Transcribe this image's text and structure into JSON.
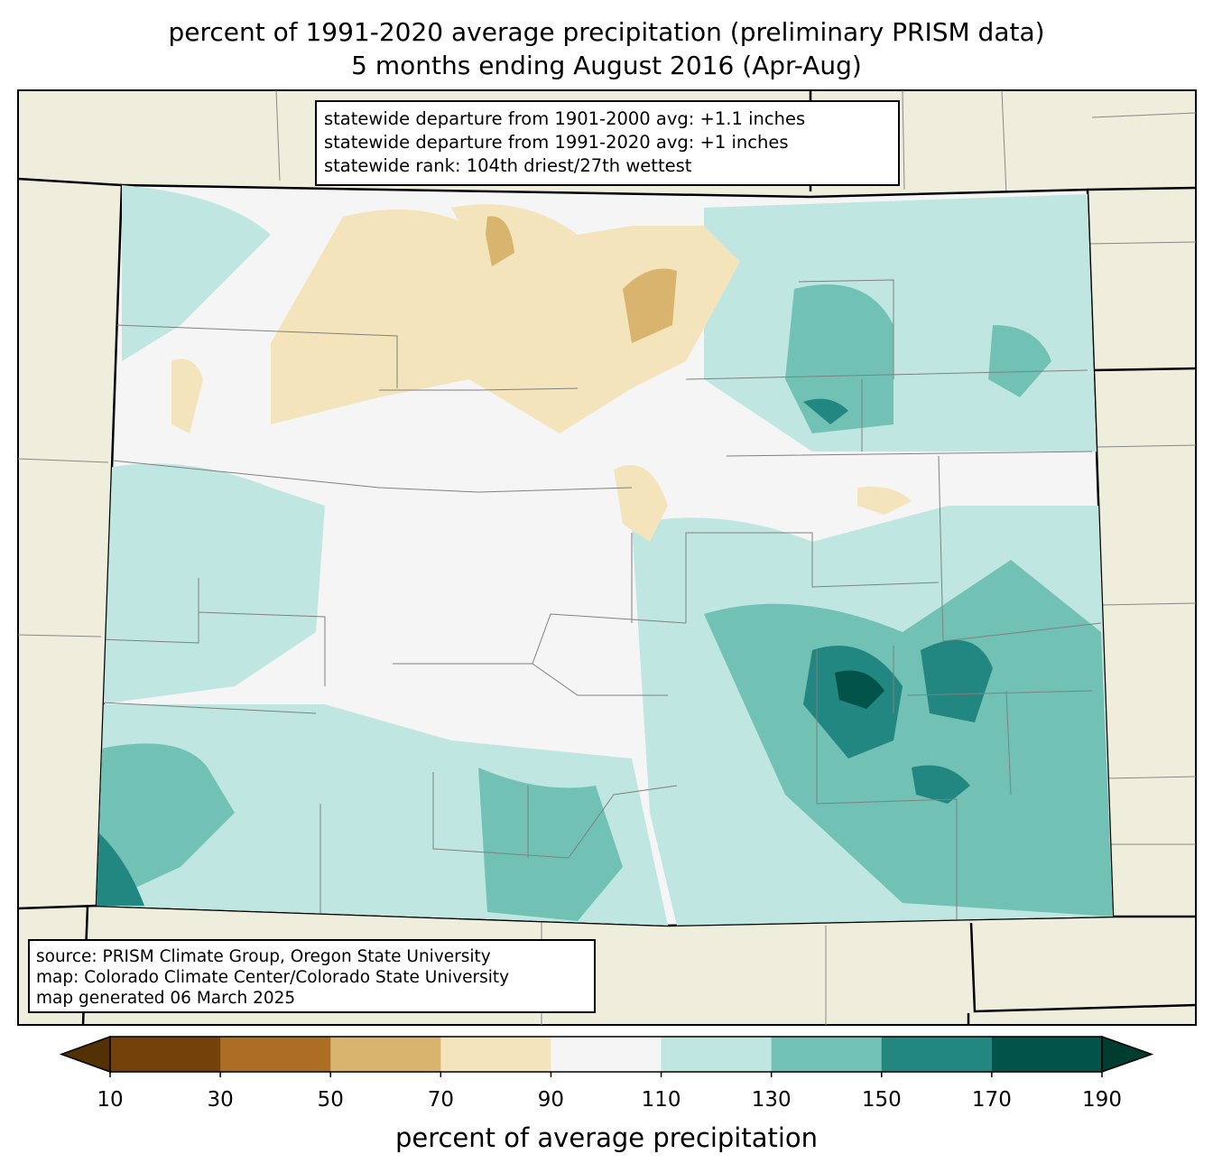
{
  "title": {
    "line1": "percent of 1991-2020 average precipitation (preliminary PRISM data)",
    "line2": "5 months ending August 2016 (Apr-Aug)"
  },
  "stats": {
    "line1": "statewide departure from 1901-2000 avg: +1.1 inches",
    "line2": "statewide departure from 1991-2020 avg: +1 inches",
    "line3": "statewide rank: 104th driest/27th wettest"
  },
  "source": {
    "line1": "source: PRISM Climate Group, Oregon State University",
    "line2": "map: Colorado Climate Center/Colorado State University",
    "line3": "map generated 06 March 2025"
  },
  "colorbar": {
    "label": "percent of average precipitation",
    "ticks": [
      "10",
      "30",
      "50",
      "70",
      "90",
      "110",
      "130",
      "150",
      "170",
      "190"
    ],
    "colors": [
      "#734109",
      "#ab6e23",
      "#d9b46e",
      "#f3e4bc",
      "#f4f5f4",
      "#bfe6e1",
      "#71c1b4",
      "#228780",
      "#02544a"
    ],
    "under_color": "#543005",
    "over_color": "#003c30"
  },
  "colors": {
    "land": "#efeedc",
    "state_base": "#f4f5f4"
  }
}
